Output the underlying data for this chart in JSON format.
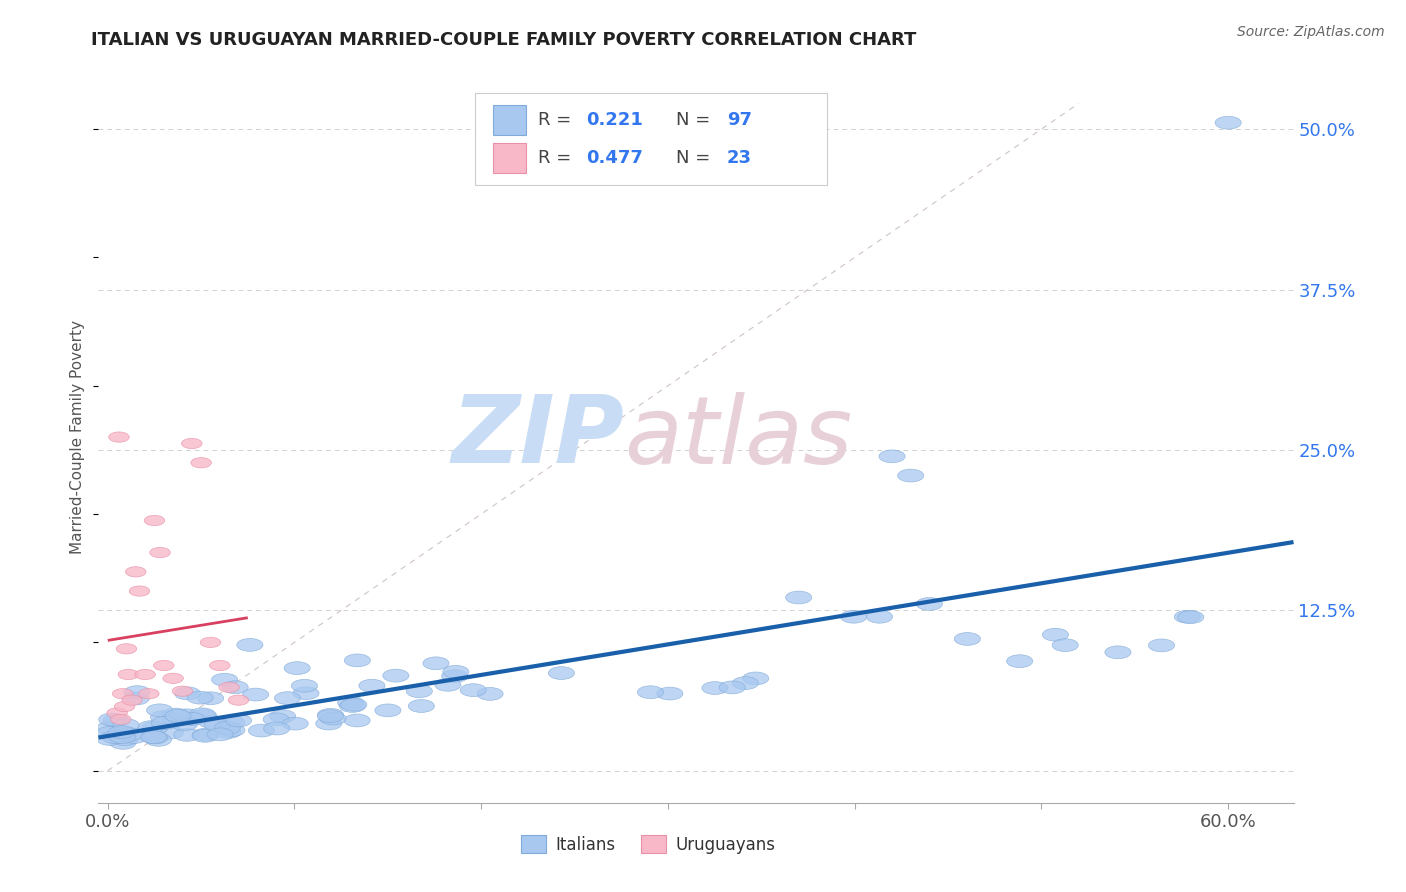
{
  "title": "ITALIAN VS URUGUAYAN MARRIED-COUPLE FAMILY POVERTY CORRELATION CHART",
  "source": "Source: ZipAtlas.com",
  "ylabel_ticks": [
    0.0,
    0.125,
    0.25,
    0.375,
    0.5
  ],
  "ylabel_labels": [
    "",
    "12.5%",
    "25.0%",
    "37.5%",
    "50.0%"
  ],
  "xlim": [
    -0.005,
    0.635
  ],
  "ylim": [
    -0.025,
    0.545
  ],
  "italian_color": "#a8c8f0",
  "italian_edge": "#80aad8",
  "uruguayan_color": "#f8b8c8",
  "uruguayan_edge": "#e890a8",
  "blue_line_color": "#1a5faa",
  "pink_line_color": "#d84060",
  "diag_line_color": "#c0b0b0",
  "grid_color": "#cccccc",
  "title_color": "#222222",
  "source_color": "#666666",
  "r_italian": 0.221,
  "n_italian": 97,
  "r_uruguayan": 0.477,
  "n_uruguayan": 23,
  "legend_r_color": "#3377ee",
  "legend_n_color": "#3377ee",
  "legend_label_color": "#444444",
  "yaxis_label_color": "#3377ee",
  "watermark_zip_color": "#c8ddf5",
  "watermark_atlas_color": "#e8d0d8"
}
